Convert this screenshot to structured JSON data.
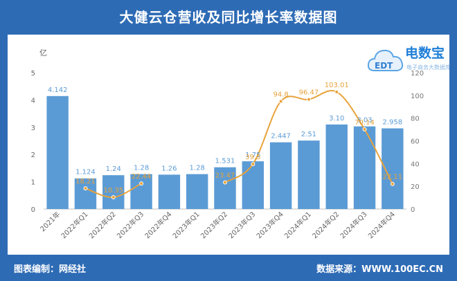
{
  "title": "大健云仓营收及同比增长率数据图",
  "footer": {
    "left": "图表编制：网经社",
    "right": "数据来源：WWW.100EC.CN"
  },
  "logo": {
    "brand": "电数宝",
    "sub": "电子商务大数据库",
    "badge": "EDT",
    "icon": "cloud-logo-icon"
  },
  "colors": {
    "frame": "#2e6bb5",
    "bar": "#5b9bd5",
    "line": "#e8a23a",
    "label_bar": "#5b9bd5",
    "label_line": "#e8a23a"
  },
  "chart_data": {
    "type": "bar",
    "categories": [
      "2021年",
      "2022年Q1",
      "2022年Q2",
      "2022年Q3",
      "2022年Q4",
      "2023年Q1",
      "2023年Q2",
      "2023年Q3",
      "2023年Q4",
      "2024年Q1",
      "2024年Q2",
      "2024年Q3",
      "2024年Q4"
    ],
    "series": [
      {
        "type": "bar",
        "axis": "left",
        "values": [
          4.142,
          1.124,
          1.24,
          1.28,
          1.26,
          1.28,
          1.531,
          1.75,
          2.447,
          2.51,
          3.1,
          3.03,
          2.958
        ],
        "labels": [
          "4.142",
          "1.124",
          "1.24",
          "1.28",
          "1.26",
          "1.28",
          "1.531",
          "1.75",
          "2.447",
          "2.51",
          "3.10",
          "3.03",
          "2.958"
        ]
      },
      {
        "type": "line",
        "axis": "right",
        "values": [
          null,
          18.21,
          10.35,
          22.44,
          null,
          null,
          23.47,
          39.5,
          94.8,
          96.47,
          103.01,
          70.14,
          22.11
        ],
        "labels": [
          "",
          "18.21",
          "10.35",
          "22.44",
          "",
          "",
          "23.47",
          "39.5",
          "94.8",
          "96.47",
          "103.01",
          "70.14",
          "22.11"
        ]
      }
    ],
    "left_axis": {
      "unit": "亿",
      "min": 0,
      "max": 5,
      "ticks": [
        0,
        1,
        2,
        3,
        4,
        5
      ]
    },
    "right_axis": {
      "min": 0,
      "max": 120,
      "ticks": [
        0,
        20,
        40,
        60,
        80,
        100,
        120
      ]
    },
    "grid": false,
    "legend": "none"
  }
}
